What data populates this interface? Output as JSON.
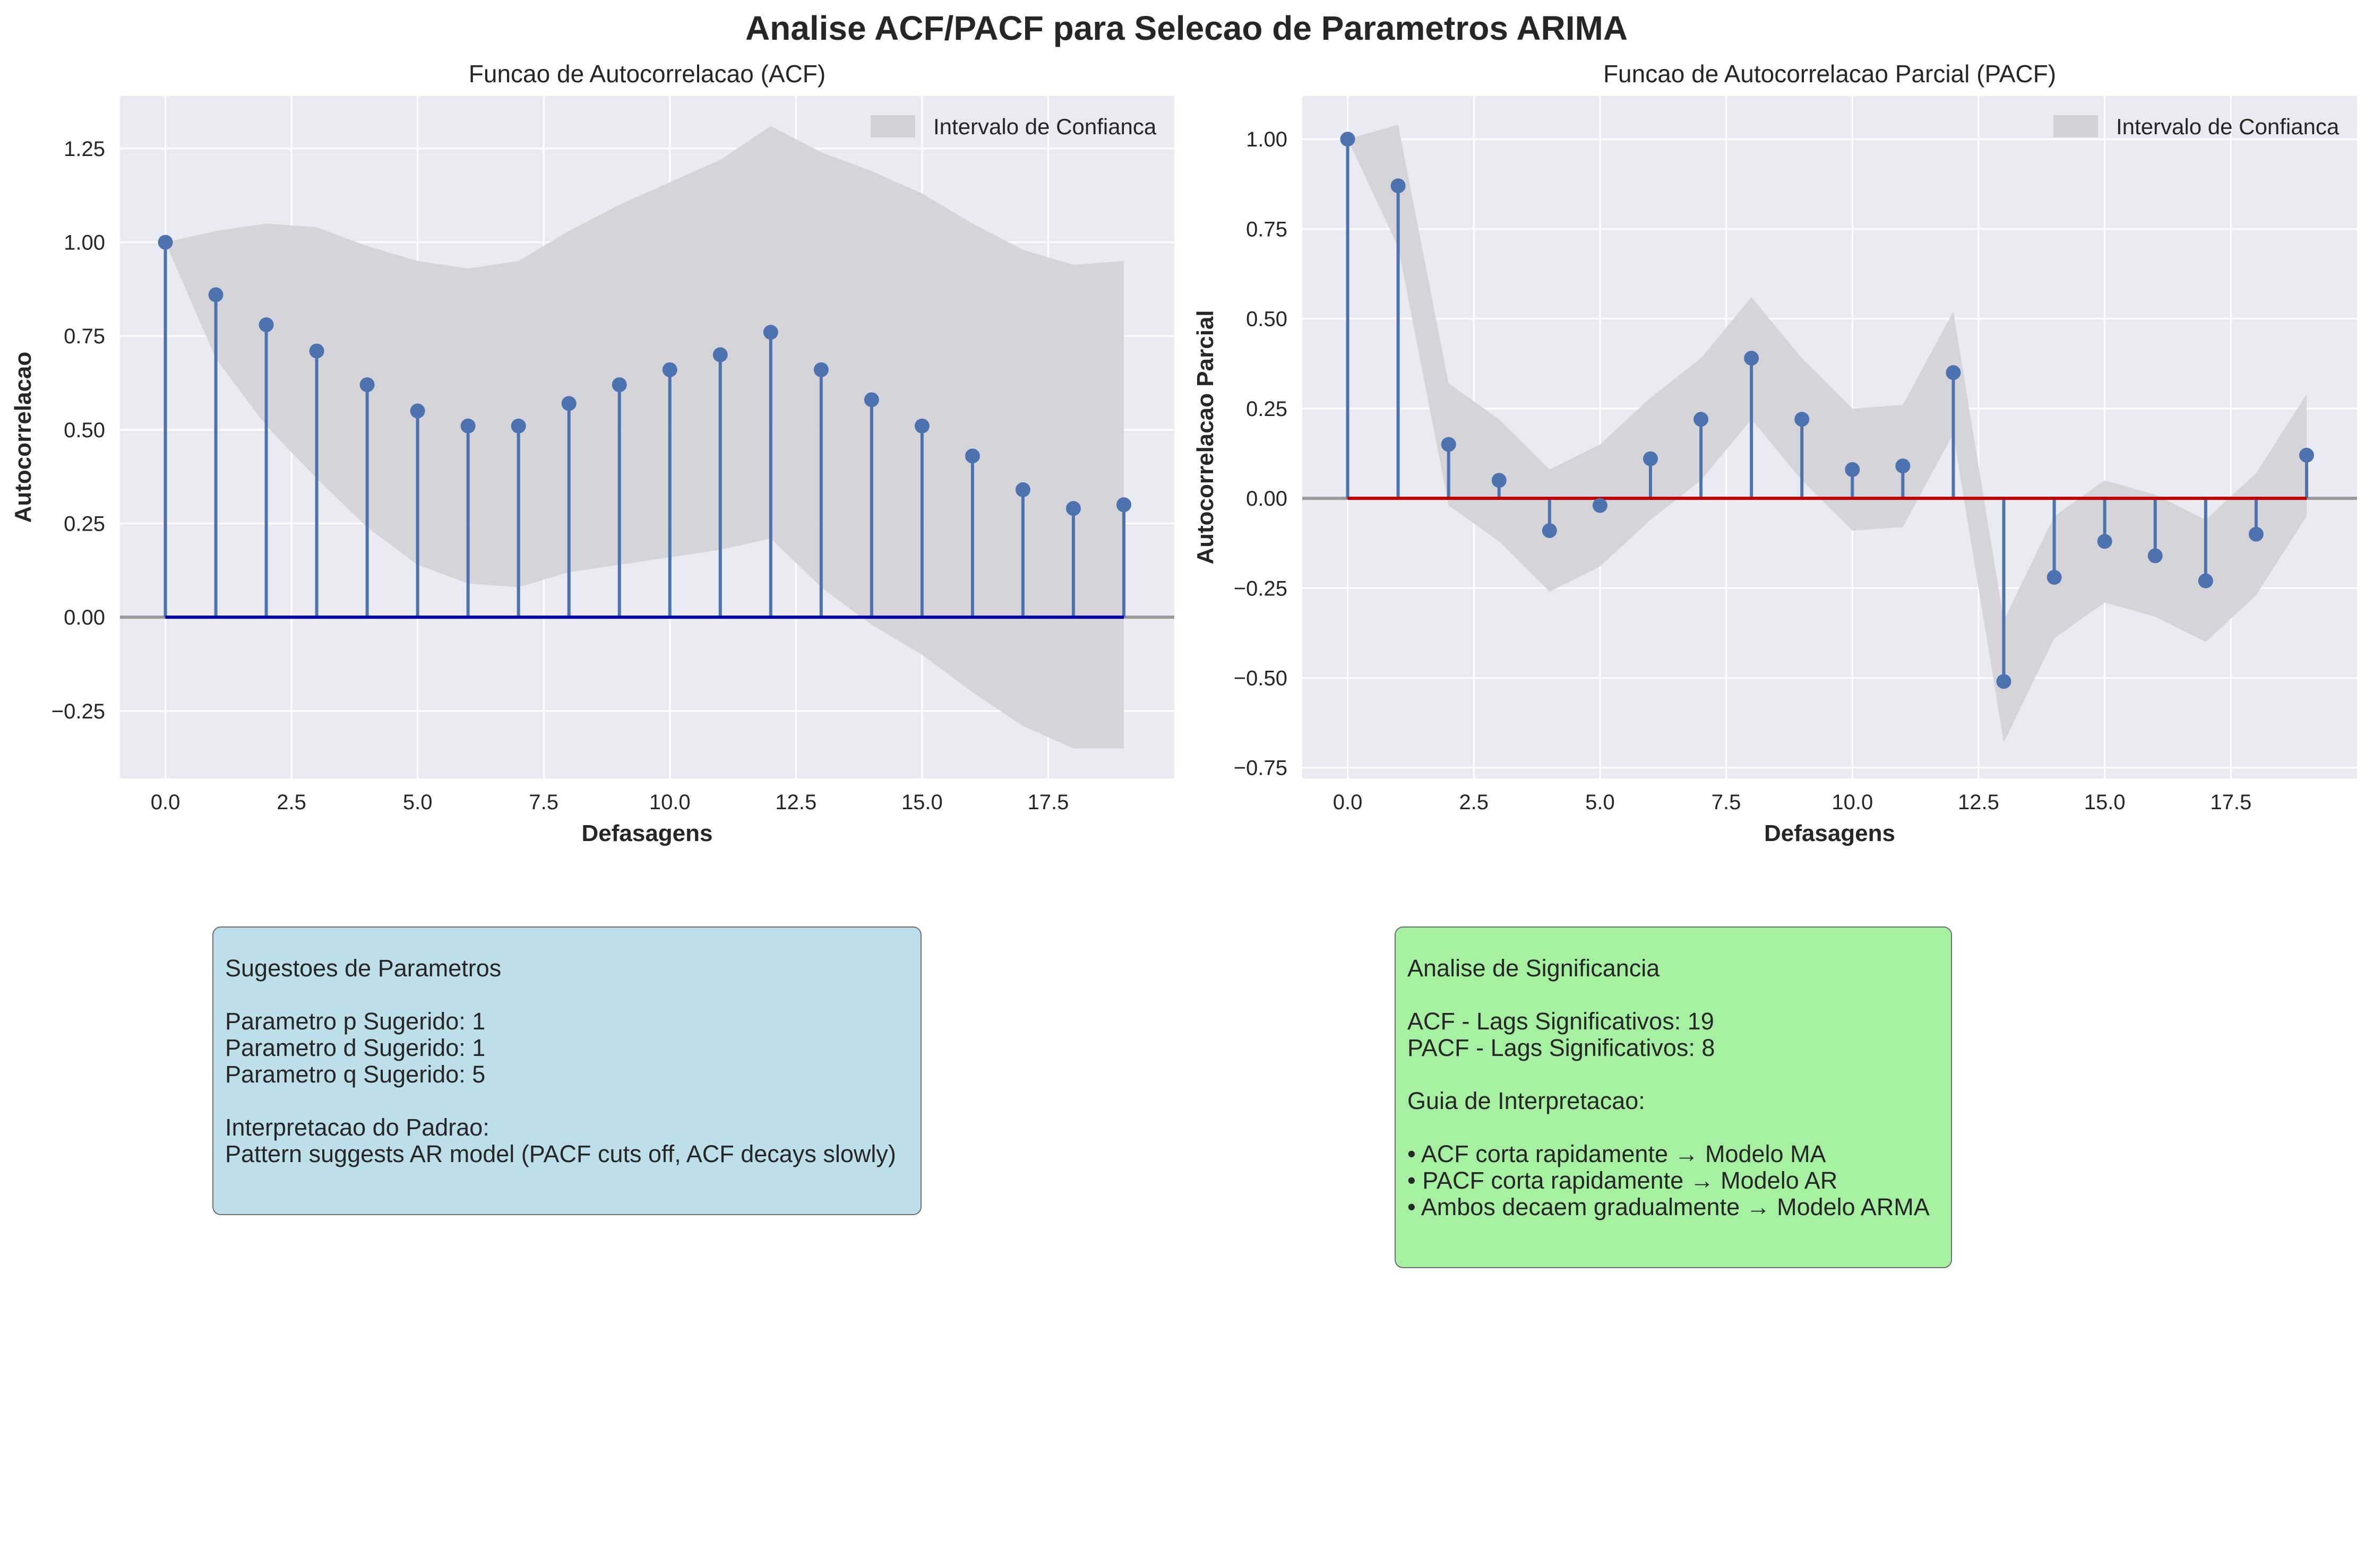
{
  "figure_title": "Analise ACF/PACF para Selecao de Parametros ARIMA",
  "colors": {
    "background": "#eaeaf2",
    "stem": "#4c72b0",
    "acf_baseline": "#0000a0",
    "pacf_baseline": "#c00000",
    "confidence": "#d2d2d6",
    "box_params": "#bddfea",
    "box_significance": "#a6f0a2"
  },
  "chart_data": [
    {
      "type": "stem",
      "title": "Funcao de Autocorrelacao (ACF)",
      "xlabel": "Defasagens",
      "ylabel": "Autocorrelacao",
      "xlim": [
        -0.9,
        20.0
      ],
      "ylim": [
        -0.43,
        1.39
      ],
      "xticks": [
        0,
        2.5,
        5,
        7.5,
        10,
        12.5,
        15,
        17.5
      ],
      "xtick_labels": [
        "0.0",
        "2.5",
        "5.0",
        "7.5",
        "10.0",
        "12.5",
        "15.0",
        "17.5"
      ],
      "yticks": [
        -0.25,
        0,
        0.25,
        0.5,
        0.75,
        1.0,
        1.25
      ],
      "ytick_labels": [
        "−0.25",
        "0.00",
        "0.25",
        "0.50",
        "0.75",
        "1.00",
        "1.25"
      ],
      "legend": [
        "Intervalo de Confianca"
      ],
      "legend_position": "upper right",
      "grid": true,
      "x": [
        0,
        1,
        2,
        3,
        4,
        5,
        6,
        7,
        8,
        9,
        10,
        11,
        12,
        13,
        14,
        15,
        16,
        17,
        18,
        19
      ],
      "values": [
        1.0,
        0.86,
        0.78,
        0.71,
        0.62,
        0.55,
        0.51,
        0.51,
        0.57,
        0.62,
        0.66,
        0.7,
        0.76,
        0.66,
        0.58,
        0.51,
        0.43,
        0.34,
        0.29,
        0.3
      ],
      "ci_lower": [
        1.0,
        0.69,
        0.51,
        0.37,
        0.24,
        0.14,
        0.09,
        0.08,
        0.12,
        0.14,
        0.16,
        0.18,
        0.21,
        0.08,
        -0.02,
        -0.1,
        -0.2,
        -0.29,
        -0.35,
        -0.35
      ],
      "ci_upper": [
        1.0,
        1.03,
        1.05,
        1.04,
        0.99,
        0.95,
        0.93,
        0.95,
        1.03,
        1.1,
        1.16,
        1.22,
        1.31,
        1.24,
        1.19,
        1.13,
        1.05,
        0.98,
        0.94,
        0.95
      ]
    },
    {
      "type": "stem",
      "title": "Funcao de Autocorrelacao Parcial (PACF)",
      "xlabel": "Defasagens",
      "ylabel": "Autocorrelacao Parcial",
      "xlim": [
        -0.9,
        20.0
      ],
      "ylim": [
        -0.78,
        1.12
      ],
      "xticks": [
        0,
        2.5,
        5,
        7.5,
        10,
        12.5,
        15,
        17.5
      ],
      "xtick_labels": [
        "0.0",
        "2.5",
        "5.0",
        "7.5",
        "10.0",
        "12.5",
        "15.0",
        "17.5"
      ],
      "yticks": [
        -0.75,
        -0.5,
        -0.25,
        0,
        0.25,
        0.5,
        0.75,
        1.0
      ],
      "ytick_labels": [
        "−0.75",
        "−0.50",
        "−0.25",
        "0.00",
        "0.25",
        "0.50",
        "0.75",
        "1.00"
      ],
      "legend": [
        "Intervalo de Confianca"
      ],
      "legend_position": "upper right",
      "grid": true,
      "x": [
        0,
        1,
        2,
        3,
        4,
        5,
        6,
        7,
        8,
        9,
        10,
        11,
        12,
        13,
        14,
        15,
        16,
        17,
        18,
        19
      ],
      "values": [
        1.0,
        0.87,
        0.15,
        0.05,
        -0.09,
        -0.02,
        0.11,
        0.22,
        0.39,
        0.22,
        0.08,
        0.09,
        0.35,
        -0.51,
        -0.22,
        -0.12,
        -0.16,
        -0.23,
        -0.1,
        0.12
      ],
      "ci_lower": [
        1.0,
        0.7,
        -0.02,
        -0.12,
        -0.26,
        -0.19,
        -0.06,
        0.05,
        0.22,
        0.05,
        -0.09,
        -0.08,
        0.18,
        -0.68,
        -0.39,
        -0.29,
        -0.33,
        -0.4,
        -0.27,
        -0.05
      ],
      "ci_upper": [
        1.0,
        1.04,
        0.32,
        0.22,
        0.08,
        0.15,
        0.28,
        0.39,
        0.56,
        0.39,
        0.25,
        0.26,
        0.52,
        -0.34,
        -0.05,
        0.05,
        0.01,
        -0.06,
        0.07,
        0.29
      ]
    }
  ],
  "params_box": {
    "heading": "Sugestoes de Parametros",
    "p_line": "Parametro p Sugerido: 1",
    "d_line": "Parametro d Sugerido: 1",
    "q_line": "Parametro q Sugerido: 5",
    "pattern_heading": "Interpretacao do Padrao:",
    "pattern_text": "Pattern suggests AR model (PACF cuts off, ACF decays slowly)"
  },
  "significance_box": {
    "heading": "Analise de Significancia",
    "acf_line": "ACF - Lags Significativos: 19",
    "pacf_line": "PACF - Lags Significativos: 8",
    "guide_heading": "Guia de Interpretacao:",
    "guide_items": [
      "• ACF corta rapidamente → Modelo MA",
      "• PACF corta rapidamente → Modelo AR",
      "• Ambos decaem gradualmente → Modelo ARMA"
    ]
  }
}
